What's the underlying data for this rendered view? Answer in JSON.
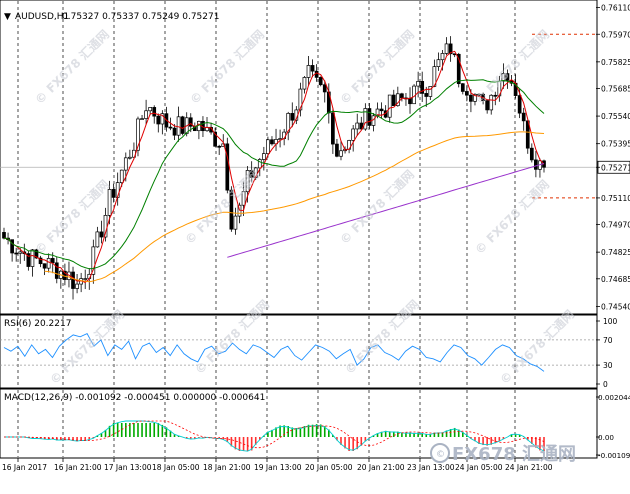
{
  "chart_data": [
    {
      "type": "candlestick",
      "panel": "price",
      "header": {
        "symbol_label": "AUDUSD,H1",
        "ohlc_text": "0.75327 0.75337 0.75249 0.75271"
      },
      "ylim": [
        0.745,
        0.7615
      ],
      "y_tick_labels": [
        "0.76110",
        "0.75970",
        "0.75825",
        "0.75685",
        "0.75540",
        "0.75395",
        "0.75271",
        "0.75110",
        "0.74970",
        "0.74825",
        "0.74685",
        "0.74540"
      ],
      "current_price": "0.75271",
      "reference_levels": [
        0.7597,
        0.7511
      ],
      "overlays": [
        {
          "kind": "fast moving average",
          "color": "#e00000"
        },
        {
          "kind": "medium moving average",
          "color": "#008000"
        },
        {
          "kind": "slow moving average",
          "color": "#ff9900"
        },
        {
          "kind": "long moving average",
          "color": "#9932cc"
        }
      ],
      "close_path_approx": [
        [
          0,
          0.749
        ],
        [
          6,
          0.748
        ],
        [
          12,
          0.7475
        ],
        [
          16,
          0.747
        ],
        [
          18,
          0.7465
        ],
        [
          22,
          0.748
        ],
        [
          26,
          0.751
        ],
        [
          32,
          0.754
        ],
        [
          35,
          0.756
        ],
        [
          40,
          0.755
        ],
        [
          44,
          0.7548
        ],
        [
          48,
          0.755
        ],
        [
          50,
          0.7545
        ],
        [
          54,
          0.754
        ],
        [
          56,
          0.75
        ],
        [
          58,
          0.7505
        ],
        [
          60,
          0.752
        ],
        [
          64,
          0.7535
        ],
        [
          68,
          0.7545
        ],
        [
          72,
          0.756
        ],
        [
          75,
          0.7575
        ],
        [
          79,
          0.7565
        ],
        [
          82,
          0.7535
        ],
        [
          86,
          0.7545
        ],
        [
          90,
          0.7555
        ],
        [
          96,
          0.756
        ],
        [
          100,
          0.7565
        ],
        [
          104,
          0.757
        ],
        [
          108,
          0.7585
        ],
        [
          110,
          0.759
        ],
        [
          112,
          0.7575
        ],
        [
          116,
          0.7565
        ],
        [
          118,
          0.7558
        ],
        [
          120,
          0.7565
        ],
        [
          122,
          0.7575
        ],
        [
          124,
          0.7578
        ],
        [
          126,
          0.7568
        ],
        [
          128,
          0.7548
        ],
        [
          130,
          0.7535
        ],
        [
          132,
          0.7529
        ],
        [
          133,
          0.7527
        ]
      ]
    },
    {
      "type": "line",
      "panel": "oscillator",
      "label": "RSI(6) 20.2217",
      "ylim": [
        0,
        100
      ],
      "levels": [
        30,
        70
      ],
      "y_tick_labels": [
        "100",
        "70",
        "30",
        "0"
      ],
      "color": "#1e90ff",
      "values_approx": [
        58,
        52,
        60,
        44,
        62,
        48,
        55,
        42,
        60,
        70,
        78,
        75,
        80,
        60,
        70,
        45,
        62,
        55,
        68,
        40,
        60,
        65,
        50,
        58,
        45,
        62,
        48,
        40,
        35,
        55,
        60,
        48,
        52,
        65,
        55,
        48,
        62,
        58,
        50,
        42,
        55,
        60,
        45,
        38,
        50,
        62,
        58,
        52,
        40,
        48,
        55,
        30,
        40,
        58,
        62,
        50,
        45,
        38,
        52,
        60,
        55,
        42,
        40,
        35,
        50,
        62,
        58,
        45,
        40,
        30,
        42,
        55,
        62,
        58,
        45,
        40,
        32,
        28,
        20
      ]
    },
    {
      "type": "histogram+line",
      "panel": "oscillator",
      "label": "MACD(12,26,9) -0.001092 -0.000451 0.000000 -0.000641",
      "y_tick_labels": [
        "0.002044",
        "0.00",
        "-0.001092"
      ],
      "colors": {
        "positive_bar": "#00aa00",
        "negative_bar": "#ff3030",
        "line": "#00ced1",
        "signal": "#ff0000"
      }
    }
  ],
  "time_axis": {
    "labels": [
      "16 Jan 2017",
      "16 Jan 21:00",
      "17 Jan 13:00",
      "18 Jan 05:00",
      "18 Jan 21:00",
      "19 Jan 13:00",
      "20 Jan 05:00",
      "20 Jan 21:00",
      "23 Jan 13:00",
      "24 Jan 05:00",
      "24 Jan 21:00"
    ]
  },
  "watermark": {
    "text": "© FX678 汇通网",
    "brand_text": "FX678 汇通网"
  }
}
